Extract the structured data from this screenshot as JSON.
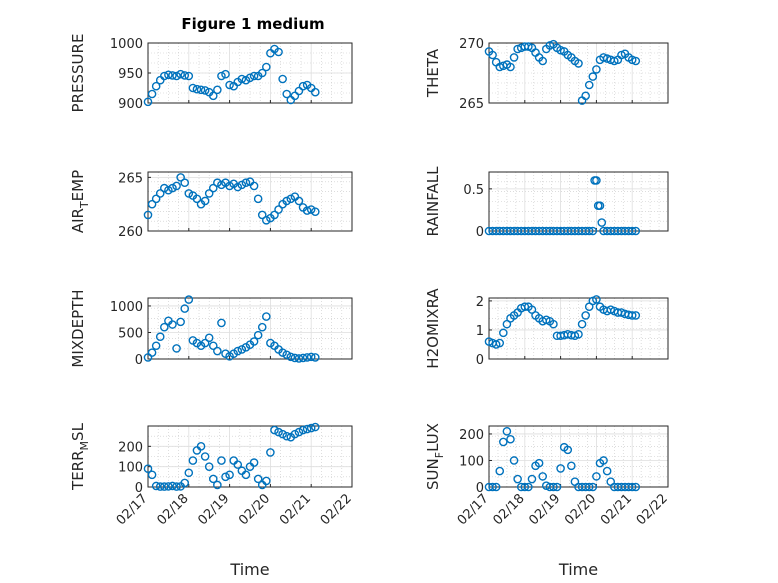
{
  "figure_title": "Figure 1 medium",
  "colors": {
    "marker": "#0072BD",
    "axis": "#262626",
    "grid": "#c8c8c8"
  },
  "chart_data": [
    {
      "type": "scatter",
      "name": "pressure",
      "ylabel": "PRESSURE",
      "title": "Figure 1 medium",
      "ylim": [
        900,
        1000
      ],
      "yticks": [
        900,
        950,
        1000
      ],
      "ytick_labels": [
        "900",
        "950",
        "1000"
      ],
      "xlim": [
        0,
        5
      ],
      "xtick_labels": [
        "02/17",
        "02/18",
        "02/19",
        "02/20",
        "02/21",
        "02/22"
      ],
      "xlabel": "",
      "x": [
        0.0,
        0.1,
        0.2,
        0.3,
        0.4,
        0.5,
        0.6,
        0.7,
        0.8,
        0.9,
        1.0,
        1.1,
        1.2,
        1.3,
        1.4,
        1.5,
        1.6,
        1.7,
        1.8,
        1.9,
        2.0,
        2.1,
        2.2,
        2.3,
        2.4,
        2.5,
        2.6,
        2.7,
        2.8,
        2.9,
        3.0,
        3.1,
        3.2,
        3.3,
        3.4,
        3.5,
        3.6,
        3.7,
        3.8,
        3.9,
        4.0,
        4.1
      ],
      "y": [
        902,
        915,
        928,
        938,
        945,
        947,
        946,
        945,
        948,
        946,
        945,
        925,
        923,
        922,
        921,
        918,
        912,
        922,
        945,
        948,
        930,
        928,
        935,
        940,
        938,
        942,
        945,
        945,
        950,
        960,
        983,
        990,
        985,
        940,
        915,
        905,
        912,
        920,
        928,
        930,
        925,
        918
      ]
    },
    {
      "type": "scatter",
      "name": "theta",
      "ylabel": "THETA",
      "ylim": [
        265,
        270
      ],
      "yticks": [
        265,
        270
      ],
      "ytick_labels": [
        "265",
        "270"
      ],
      "xlim": [
        0,
        5
      ],
      "xtick_labels": [
        "02/17",
        "02/18",
        "02/19",
        "02/20",
        "02/21",
        "02/22"
      ],
      "xlabel": "",
      "x": [
        0.0,
        0.1,
        0.2,
        0.3,
        0.4,
        0.5,
        0.6,
        0.7,
        0.8,
        0.9,
        1.0,
        1.1,
        1.2,
        1.3,
        1.4,
        1.5,
        1.6,
        1.7,
        1.8,
        1.9,
        2.0,
        2.1,
        2.2,
        2.3,
        2.4,
        2.5,
        2.6,
        2.7,
        2.8,
        2.9,
        3.0,
        3.1,
        3.2,
        3.3,
        3.4,
        3.5,
        3.6,
        3.7,
        3.8,
        3.9,
        4.0,
        4.1
      ],
      "y": [
        269.3,
        269.0,
        268.4,
        268.0,
        268.1,
        268.2,
        268.0,
        268.8,
        269.5,
        269.6,
        269.7,
        269.7,
        269.6,
        269.2,
        268.8,
        268.5,
        269.5,
        269.8,
        269.9,
        269.6,
        269.4,
        269.3,
        269.0,
        268.8,
        268.5,
        268.3,
        265.2,
        265.6,
        266.5,
        267.2,
        267.8,
        268.6,
        268.8,
        268.7,
        268.6,
        268.5,
        268.6,
        269.0,
        269.1,
        268.8,
        268.6,
        268.5
      ]
    },
    {
      "type": "scatter",
      "name": "air-temp",
      "ylabel": "AIR_TEMP",
      "ylim": [
        260,
        265.5
      ],
      "yticks": [
        260,
        265
      ],
      "ytick_labels": [
        "260",
        "265"
      ],
      "xlim": [
        0,
        5
      ],
      "xtick_labels": [
        "02/17",
        "02/18",
        "02/19",
        "02/20",
        "02/21",
        "02/22"
      ],
      "xlabel": "",
      "x": [
        0.0,
        0.1,
        0.2,
        0.3,
        0.4,
        0.5,
        0.6,
        0.7,
        0.8,
        0.9,
        1.0,
        1.1,
        1.2,
        1.3,
        1.4,
        1.5,
        1.6,
        1.7,
        1.8,
        1.9,
        2.0,
        2.1,
        2.2,
        2.3,
        2.4,
        2.5,
        2.6,
        2.7,
        2.8,
        2.9,
        3.0,
        3.1,
        3.2,
        3.3,
        3.4,
        3.5,
        3.6,
        3.7,
        3.8,
        3.9,
        4.0,
        4.1
      ],
      "y": [
        261.5,
        262.5,
        263.0,
        263.5,
        264.0,
        263.8,
        264.0,
        264.2,
        265.0,
        264.5,
        263.5,
        263.3,
        263.0,
        262.5,
        262.8,
        263.5,
        264.0,
        264.5,
        264.3,
        264.5,
        264.2,
        264.4,
        264.1,
        264.3,
        264.5,
        264.6,
        264.2,
        263.0,
        261.5,
        261.0,
        261.2,
        261.5,
        262.0,
        262.5,
        262.8,
        263.0,
        263.2,
        262.8,
        262.2,
        261.9,
        262.0,
        261.8
      ]
    },
    {
      "type": "scatter",
      "name": "rainfall",
      "ylabel": "RAINFALL",
      "ylim": [
        0,
        0.7
      ],
      "yticks": [
        0,
        0.5
      ],
      "ytick_labels": [
        "0",
        "0.5"
      ],
      "xlim": [
        0,
        5
      ],
      "xtick_labels": [
        "02/17",
        "02/18",
        "02/19",
        "02/20",
        "02/21",
        "02/22"
      ],
      "xlabel": "",
      "x": [
        0.0,
        0.1,
        0.2,
        0.3,
        0.4,
        0.5,
        0.6,
        0.7,
        0.8,
        0.9,
        1.0,
        1.1,
        1.2,
        1.3,
        1.4,
        1.5,
        1.6,
        1.7,
        1.8,
        1.9,
        2.0,
        2.1,
        2.2,
        2.3,
        2.4,
        2.5,
        2.6,
        2.7,
        2.8,
        2.9,
        2.95,
        3.0,
        3.05,
        3.1,
        3.15,
        3.2,
        3.3,
        3.4,
        3.5,
        3.6,
        3.7,
        3.8,
        3.9,
        4.0,
        4.1
      ],
      "y": [
        0,
        0,
        0,
        0,
        0,
        0,
        0,
        0,
        0,
        0,
        0,
        0,
        0,
        0,
        0,
        0,
        0,
        0,
        0,
        0,
        0,
        0,
        0,
        0,
        0,
        0,
        0,
        0,
        0,
        0,
        0.6,
        0.6,
        0.3,
        0.3,
        0.1,
        0,
        0,
        0,
        0,
        0,
        0,
        0,
        0,
        0,
        0
      ]
    },
    {
      "type": "scatter",
      "name": "mixdepth",
      "ylabel": "MIXDEPTH",
      "ylim": [
        0,
        1150
      ],
      "yticks": [
        0,
        500,
        1000
      ],
      "ytick_labels": [
        "0",
        "500",
        "1000"
      ],
      "xlim": [
        0,
        5
      ],
      "xtick_labels": [
        "02/17",
        "02/18",
        "02/19",
        "02/20",
        "02/21",
        "02/22"
      ],
      "xlabel": "",
      "x": [
        0.0,
        0.1,
        0.2,
        0.3,
        0.4,
        0.5,
        0.6,
        0.7,
        0.8,
        0.9,
        1.0,
        1.1,
        1.2,
        1.3,
        1.4,
        1.5,
        1.6,
        1.7,
        1.8,
        1.9,
        2.0,
        2.1,
        2.2,
        2.3,
        2.4,
        2.5,
        2.6,
        2.7,
        2.8,
        2.9,
        3.0,
        3.1,
        3.2,
        3.3,
        3.4,
        3.5,
        3.6,
        3.7,
        3.8,
        3.9,
        4.0,
        4.1
      ],
      "y": [
        30,
        120,
        250,
        420,
        600,
        720,
        650,
        200,
        700,
        950,
        1120,
        350,
        300,
        250,
        300,
        400,
        250,
        150,
        680,
        100,
        50,
        100,
        150,
        180,
        220,
        270,
        330,
        450,
        600,
        800,
        300,
        250,
        180,
        120,
        80,
        40,
        20,
        10,
        20,
        30,
        40,
        30
      ]
    },
    {
      "type": "scatter",
      "name": "h2omixra",
      "ylabel": "H2OMIXRA",
      "ylim": [
        0,
        2.1
      ],
      "yticks": [
        0,
        1,
        2
      ],
      "ytick_labels": [
        "0",
        "1",
        "2"
      ],
      "xlim": [
        0,
        5
      ],
      "xtick_labels": [
        "02/17",
        "02/18",
        "02/19",
        "02/20",
        "02/21",
        "02/22"
      ],
      "xlabel": "",
      "x": [
        0.0,
        0.1,
        0.2,
        0.3,
        0.4,
        0.5,
        0.6,
        0.7,
        0.8,
        0.9,
        1.0,
        1.1,
        1.2,
        1.3,
        1.4,
        1.5,
        1.6,
        1.7,
        1.8,
        1.9,
        2.0,
        2.1,
        2.2,
        2.3,
        2.4,
        2.5,
        2.6,
        2.7,
        2.8,
        2.9,
        3.0,
        3.1,
        3.2,
        3.3,
        3.4,
        3.5,
        3.6,
        3.7,
        3.8,
        3.9,
        4.0,
        4.1
      ],
      "y": [
        0.6,
        0.55,
        0.5,
        0.55,
        0.9,
        1.2,
        1.4,
        1.5,
        1.6,
        1.75,
        1.8,
        1.8,
        1.7,
        1.5,
        1.4,
        1.3,
        1.35,
        1.3,
        1.2,
        0.8,
        0.8,
        0.82,
        0.85,
        0.82,
        0.8,
        0.85,
        1.2,
        1.5,
        1.8,
        2.0,
        2.05,
        1.8,
        1.7,
        1.65,
        1.7,
        1.65,
        1.6,
        1.6,
        1.55,
        1.52,
        1.5,
        1.5
      ]
    },
    {
      "type": "scatter",
      "name": "terr-msl",
      "ylabel": "TERR_MSL",
      "ylim": [
        0,
        300
      ],
      "yticks": [
        0,
        100,
        200
      ],
      "ytick_labels": [
        "0",
        "100",
        "200"
      ],
      "xlim": [
        0,
        5
      ],
      "xtick_labels": [
        "02/17",
        "02/18",
        "02/19",
        "02/20",
        "02/21",
        "02/22"
      ],
      "xlabel": "Time",
      "x": [
        0.0,
        0.1,
        0.2,
        0.3,
        0.4,
        0.5,
        0.6,
        0.7,
        0.8,
        0.9,
        1.0,
        1.1,
        1.2,
        1.3,
        1.4,
        1.5,
        1.6,
        1.7,
        1.8,
        1.9,
        2.0,
        2.1,
        2.2,
        2.3,
        2.4,
        2.5,
        2.6,
        2.7,
        2.8,
        2.9,
        3.0,
        3.1,
        3.2,
        3.3,
        3.4,
        3.5,
        3.6,
        3.7,
        3.8,
        3.9,
        4.0,
        4.1
      ],
      "y": [
        90,
        60,
        5,
        2,
        2,
        3,
        5,
        2,
        3,
        20,
        70,
        130,
        180,
        200,
        150,
        100,
        40,
        10,
        130,
        50,
        60,
        130,
        110,
        80,
        60,
        100,
        120,
        40,
        10,
        30,
        170,
        280,
        270,
        260,
        250,
        245,
        260,
        270,
        280,
        285,
        290,
        295
      ]
    },
    {
      "type": "scatter",
      "name": "sun-flux",
      "ylabel": "SUN_FLUX",
      "ylim": [
        0,
        230
      ],
      "yticks": [
        0,
        100,
        200
      ],
      "ytick_labels": [
        "0",
        "100",
        "200"
      ],
      "xlim": [
        0,
        5
      ],
      "xtick_labels": [
        "02/17",
        "02/18",
        "02/19",
        "02/20",
        "02/21",
        "02/22"
      ],
      "xlabel": "Time",
      "x": [
        0.0,
        0.1,
        0.2,
        0.3,
        0.4,
        0.5,
        0.6,
        0.7,
        0.8,
        0.9,
        1.0,
        1.1,
        1.2,
        1.3,
        1.4,
        1.5,
        1.6,
        1.7,
        1.8,
        1.9,
        2.0,
        2.1,
        2.2,
        2.3,
        2.4,
        2.5,
        2.6,
        2.7,
        2.8,
        2.9,
        3.0,
        3.1,
        3.2,
        3.3,
        3.4,
        3.5,
        3.6,
        3.7,
        3.8,
        3.9,
        4.0,
        4.1
      ],
      "y": [
        0,
        0,
        0,
        60,
        170,
        210,
        180,
        100,
        30,
        0,
        0,
        0,
        30,
        80,
        90,
        40,
        5,
        0,
        0,
        0,
        70,
        150,
        140,
        80,
        20,
        0,
        0,
        0,
        0,
        0,
        40,
        90,
        100,
        60,
        20,
        0,
        0,
        0,
        0,
        0,
        0,
        0
      ]
    }
  ]
}
